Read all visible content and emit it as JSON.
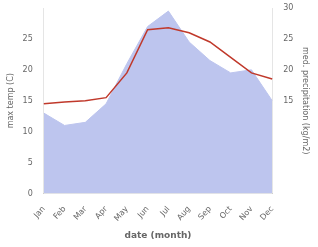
{
  "chart_data": {
    "type": "line",
    "xlabel": "date (month)",
    "ylabel": "max temp (C)",
    "y2label": "med. precipitation (kg/m2)",
    "categories": [
      "Jan",
      "Feb",
      "Mar",
      "Apr",
      "May",
      "Jun",
      "Jul",
      "Aug",
      "Sep",
      "Oct",
      "Nov",
      "Dec"
    ],
    "series": [
      {
        "type": "area",
        "color": "#bdc5ee",
        "axis": "y2",
        "values": [
          13.0,
          11.0,
          11.5,
          14.5,
          21.0,
          27.0,
          29.5,
          24.5,
          21.5,
          19.5,
          20.0,
          15.0
        ]
      },
      {
        "type": "line",
        "color": "#c0392b",
        "values": [
          14.5,
          14.8,
          15.0,
          15.5,
          19.5,
          26.5,
          26.8,
          26.0,
          24.5,
          22.0,
          19.5,
          18.5
        ]
      }
    ],
    "ylim": [
      0,
      30
    ],
    "yticks": [
      0,
      5,
      10,
      15,
      20,
      25
    ],
    "y2lim": [
      0,
      30
    ],
    "y2ticks": [
      15,
      20,
      25,
      30
    ],
    "grid": false
  }
}
